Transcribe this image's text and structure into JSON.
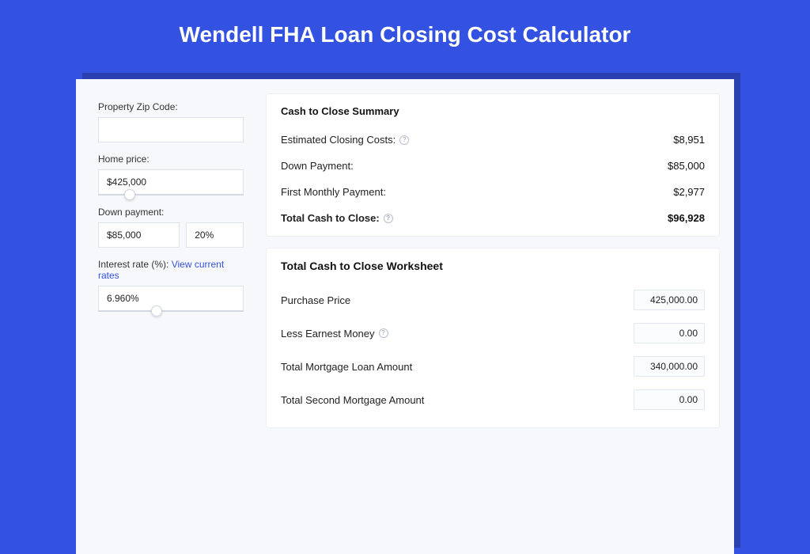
{
  "colors": {
    "page_bg": "#3452e1",
    "card_bg": "#f7f8fc",
    "panel_bg": "#ffffff",
    "border": "#dfe3ea",
    "text": "#222222",
    "title_text": "#ffffff",
    "link": "#3452e1",
    "shadow": "#2a3fb0"
  },
  "title": "Wendell FHA Loan Closing Cost Calculator",
  "form": {
    "zip": {
      "label": "Property Zip Code:",
      "value": ""
    },
    "home_price": {
      "label": "Home price:",
      "value": "$425,000",
      "slider_pct": 22
    },
    "down_payment": {
      "label": "Down payment:",
      "value": "$85,000",
      "pct": "20%"
    },
    "interest_rate": {
      "label": "Interest rate (%):",
      "link_text": "View current rates",
      "value": "6.960%",
      "slider_pct": 40
    }
  },
  "summary": {
    "title": "Cash to Close Summary",
    "rows": [
      {
        "label": "Estimated Closing Costs:",
        "value": "$8,951",
        "help": true
      },
      {
        "label": "Down Payment:",
        "value": "$85,000",
        "help": false
      },
      {
        "label": "First Monthly Payment:",
        "value": "$2,977",
        "help": false
      }
    ],
    "total": {
      "label": "Total Cash to Close:",
      "value": "$96,928",
      "help": true
    }
  },
  "worksheet": {
    "title": "Total Cash to Close Worksheet",
    "rows": [
      {
        "label": "Purchase Price",
        "value": "425,000.00",
        "help": false
      },
      {
        "label": "Less Earnest Money",
        "value": "0.00",
        "help": true
      },
      {
        "label": "Total Mortgage Loan Amount",
        "value": "340,000.00",
        "help": false
      },
      {
        "label": "Total Second Mortgage Amount",
        "value": "0.00",
        "help": false
      }
    ]
  }
}
